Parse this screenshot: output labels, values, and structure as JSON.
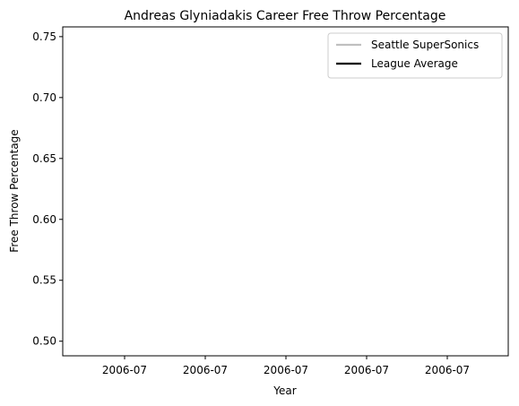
{
  "chart_data": {
    "type": "line",
    "title": "Andreas Glyniadakis Career Free Throw Percentage",
    "xlabel": "Year",
    "ylabel": "Free Throw Percentage",
    "x_tick_labels": [
      "2006-07",
      "2006-07",
      "2006-07",
      "2006-07",
      "2006-07"
    ],
    "y_ticks": [
      0.5,
      0.55,
      0.6,
      0.65,
      0.7,
      0.75
    ],
    "y_tick_labels": [
      "0.50",
      "0.55",
      "0.60",
      "0.65",
      "0.70",
      "0.75"
    ],
    "ylim": [
      0.488,
      0.758
    ],
    "grid": false,
    "legend_position": "top-right",
    "series": [
      {
        "name": "Seattle SuperSonics",
        "color": "#c0c0c0",
        "values": []
      },
      {
        "name": "League Average",
        "color": "#000000",
        "values": []
      }
    ]
  }
}
